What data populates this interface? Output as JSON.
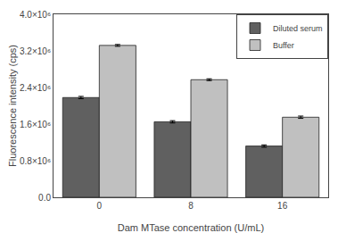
{
  "chart_data": {
    "type": "bar",
    "xlabel": "Dam MTase concentration (U/mL)",
    "ylabel": "Fluorescence intensity (cps)",
    "categories": [
      "0",
      "8",
      "16"
    ],
    "series": [
      {
        "name": "Diluted serum",
        "color": "#606060",
        "values": [
          2180000,
          1650000,
          1120000
        ],
        "errors": [
          25000,
          25000,
          25000
        ]
      },
      {
        "name": "Buffer",
        "color": "#c0c0c0",
        "values": [
          3320000,
          2570000,
          1750000
        ],
        "errors": [
          20000,
          20000,
          25000
        ]
      }
    ],
    "ylim": [
      0,
      4000000
    ],
    "yticks": [
      {
        "value": 0,
        "label": "0.0"
      },
      {
        "value": 800000,
        "label": "0.8×10⁶"
      },
      {
        "value": 1600000,
        "label": "1.6×10⁶"
      },
      {
        "value": 2400000,
        "label": "2.4×10⁶"
      },
      {
        "value": 3200000,
        "label": "3.2×10⁶"
      },
      {
        "value": 4000000,
        "label": "4.0×10⁶"
      }
    ],
    "legend": "upper right",
    "grid": false
  }
}
